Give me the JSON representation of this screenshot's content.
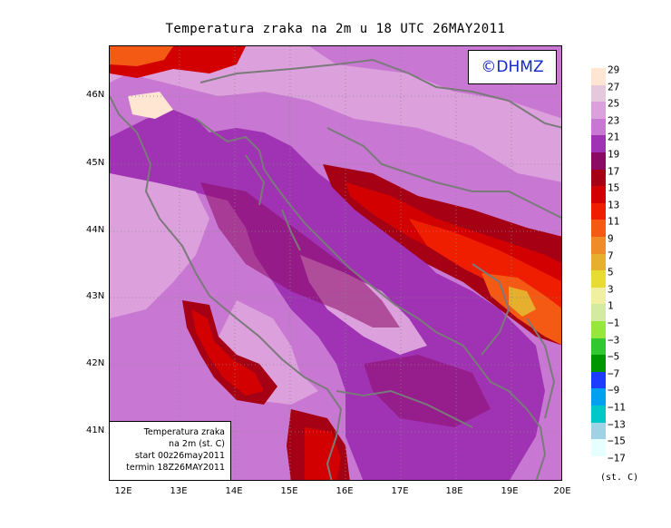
{
  "title": "Temperatura zraka na 2m u 18 UTC 26MAY2011",
  "logo": "©DHMZ",
  "info": {
    "line1": "Temperatura zraka",
    "line2": "na 2m (st. C)",
    "line3": "start 00z26may2011",
    "line4": "termin 18Z26MAY2011"
  },
  "lat_labels": [
    "46N",
    "45N",
    "44N",
    "43N",
    "42N",
    "41N"
  ],
  "lon_labels": [
    "12E",
    "13E",
    "14E",
    "15E",
    "16E",
    "17E",
    "18E",
    "19E",
    "20E"
  ],
  "legend": {
    "labels": [
      "29",
      "27",
      "25",
      "23",
      "21",
      "19",
      "17",
      "15",
      "13",
      "11",
      "9",
      "7",
      "5",
      "3",
      "1",
      "−1",
      "−3",
      "−5",
      "−7",
      "−9",
      "−11",
      "−13",
      "−15",
      "−17"
    ],
    "colors": [
      "#ffe6d2",
      "#e6c8dc",
      "#dca0dc",
      "#c878d2",
      "#a032b4",
      "#8c0a64",
      "#a50014",
      "#d20000",
      "#f01e00",
      "#f55a14",
      "#f08c28",
      "#e6af2d",
      "#e6dc32",
      "#f0f0a0",
      "#d2eba0",
      "#96e63c",
      "#32c832",
      "#009600",
      "#1e3cff",
      "#00a0f0",
      "#00c8c8",
      "#a0d2e6",
      "#e6ffff"
    ],
    "unit": "(st. C)"
  },
  "colors": {
    "sea_base": "#a032b4",
    "land_base": "#c878d2",
    "coast": "#7a7a7a"
  }
}
